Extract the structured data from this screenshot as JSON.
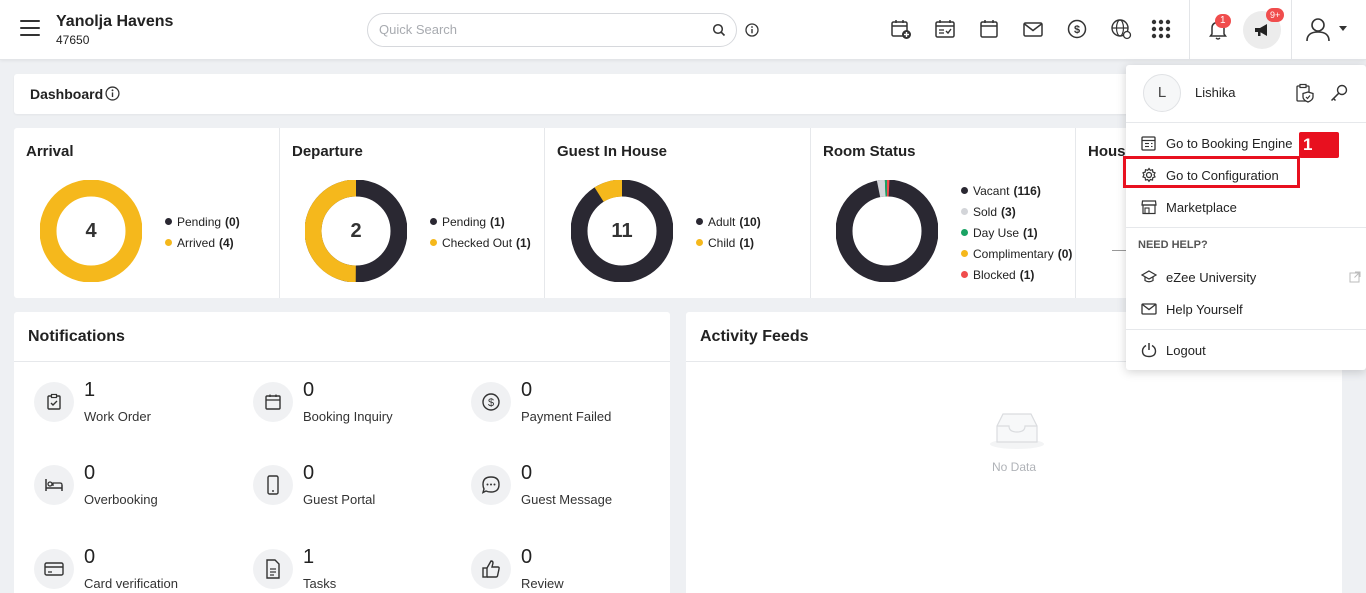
{
  "header": {
    "property_name": "Yanolja Havens",
    "property_code": "47650",
    "search_placeholder": "Quick Search",
    "notification_badge": "1",
    "announcement_badge": "9+",
    "icons": [
      "calendar-add-icon",
      "calendar-check-icon",
      "calendar-icon",
      "mail-icon",
      "dollar-icon",
      "globe-icon",
      "apps-grid-icon"
    ]
  },
  "dashboard": {
    "title": "Dashboard"
  },
  "stats": {
    "arrival": {
      "title": "Arrival",
      "total": "4",
      "legend": [
        {
          "label": "Pending",
          "value": "(0)",
          "color": "#2a2832"
        },
        {
          "label": "Arrived",
          "value": "(4)",
          "color": "#f5b81c"
        }
      ]
    },
    "departure": {
      "title": "Departure",
      "total": "2",
      "legend": [
        {
          "label": "Pending",
          "value": "(1)",
          "color": "#2a2832"
        },
        {
          "label": "Checked Out",
          "value": "(1)",
          "color": "#f5b81c"
        }
      ]
    },
    "guest_in_house": {
      "title": "Guest In House",
      "total": "11",
      "legend": [
        {
          "label": "Adult",
          "value": "(10)",
          "color": "#2a2832"
        },
        {
          "label": "Child",
          "value": "(1)",
          "color": "#f5b81c"
        }
      ]
    },
    "room_status": {
      "title": "Room Status",
      "legend": [
        {
          "label": "Vacant",
          "value": "(116)",
          "color": "#2a2832"
        },
        {
          "label": "Sold",
          "value": "(3)",
          "color": "#d3d5d9"
        },
        {
          "label": "Day Use",
          "value": "(1)",
          "color": "#1aa364"
        },
        {
          "label": "Complimentary",
          "value": "(0)",
          "color": "#f5b81c"
        },
        {
          "label": "Blocked",
          "value": "(1)",
          "color": "#f04d4d"
        }
      ]
    },
    "house": {
      "title": "House"
    }
  },
  "notifications": {
    "title": "Notifications",
    "items": [
      {
        "count": "1",
        "label": "Work Order",
        "icon": "clipboard-check-icon"
      },
      {
        "count": "0",
        "label": "Booking Inquiry",
        "icon": "calendar-icon"
      },
      {
        "count": "0",
        "label": "Payment Failed",
        "icon": "dollar-icon"
      },
      {
        "count": "0",
        "label": "Overbooking",
        "icon": "bed-icon"
      },
      {
        "count": "0",
        "label": "Guest Portal",
        "icon": "mobile-icon"
      },
      {
        "count": "0",
        "label": "Guest Message",
        "icon": "chat-icon"
      },
      {
        "count": "0",
        "label": "Card verification",
        "icon": "card-icon"
      },
      {
        "count": "1",
        "label": "Tasks",
        "icon": "document-icon"
      },
      {
        "count": "0",
        "label": "Review",
        "icon": "thumbs-up-icon"
      }
    ]
  },
  "activity_feeds": {
    "title": "Activity Feeds",
    "empty_text": "No Data"
  },
  "user_menu": {
    "avatar_initial": "L",
    "user_name": "Lishika",
    "items": {
      "booking_engine": "Go to Booking Engine",
      "configuration": "Go to Configuration",
      "marketplace": "Marketplace",
      "need_help": "NEED HELP?",
      "university": "eZee University",
      "help_yourself": "Help Yourself",
      "logout": "Logout"
    },
    "step_marker": "1"
  }
}
